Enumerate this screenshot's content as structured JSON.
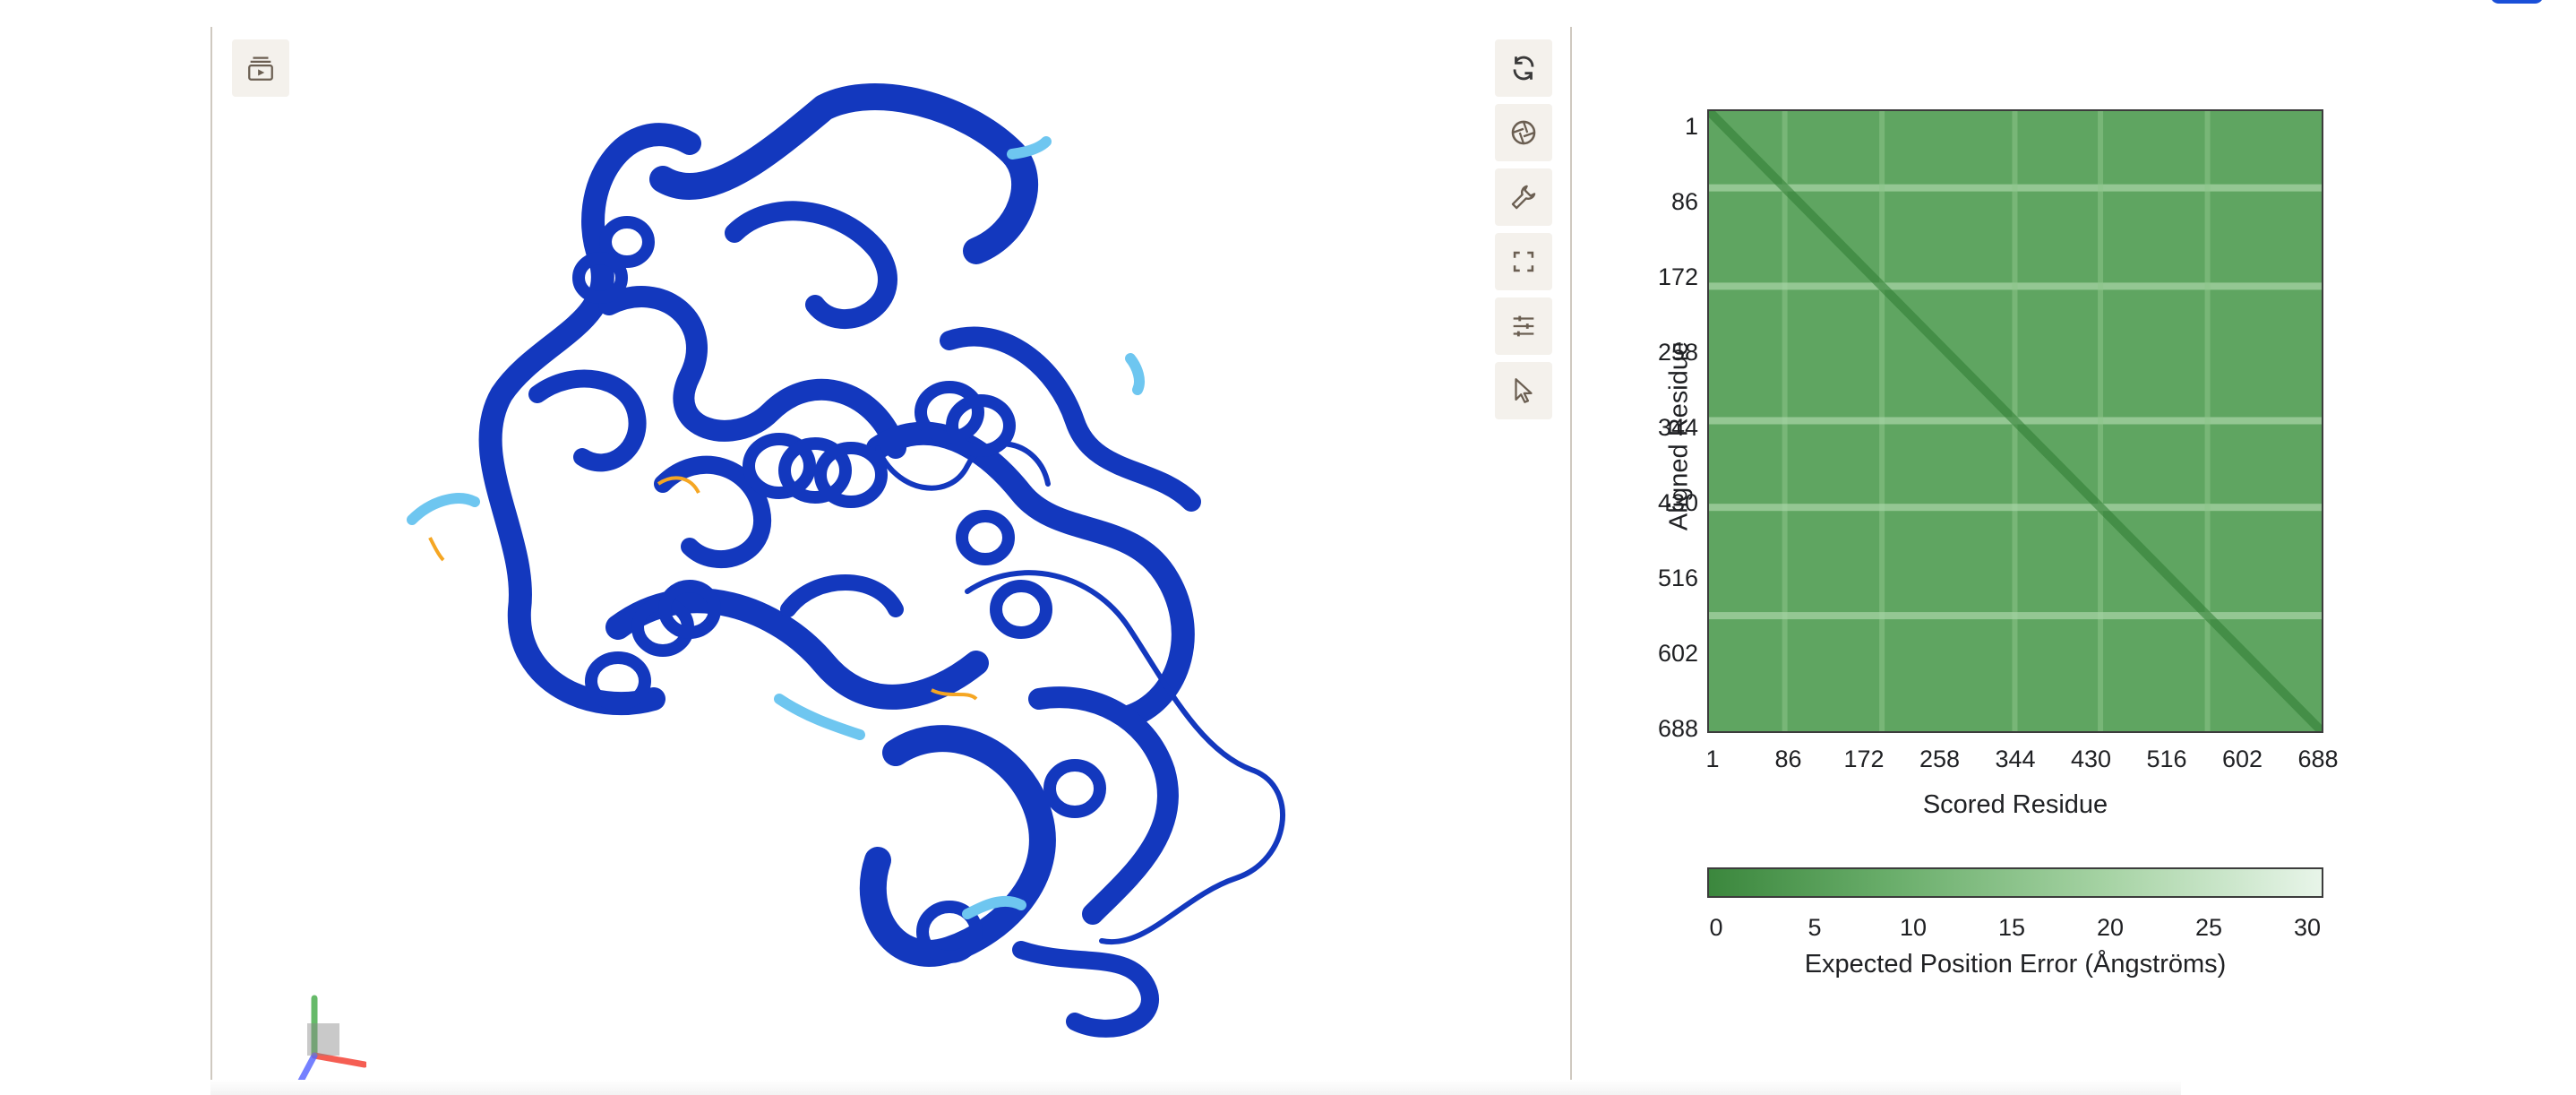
{
  "toolbar": {
    "left_button_icon": "play-stack-icon",
    "right_buttons": [
      {
        "name": "reset-view-button",
        "icon": "refresh-icon"
      },
      {
        "name": "spin-toggle-button",
        "icon": "aperture-icon"
      },
      {
        "name": "settings-button",
        "icon": "wrench-icon"
      },
      {
        "name": "fullscreen-button",
        "icon": "expand-icon"
      },
      {
        "name": "display-options-button",
        "icon": "sliders-icon"
      },
      {
        "name": "select-mode-button",
        "icon": "pointer-icon"
      }
    ]
  },
  "colors": {
    "structure_main": "#1338be",
    "structure_low": "#6ec6f0",
    "structure_very_low": "#f5a623",
    "pae_dark": "#2e7d32",
    "pae_light": "#e8f5e9",
    "border": "#cfc9c0"
  },
  "pae_plot": {
    "y_axis_label": "Aligned Residue",
    "x_axis_label": "Scored Residue",
    "y_ticks": [
      "1",
      "86",
      "172",
      "258",
      "344",
      "430",
      "516",
      "602",
      "688"
    ],
    "x_ticks": [
      "1",
      "86",
      "172",
      "258",
      "344",
      "430",
      "516",
      "602",
      "688"
    ],
    "colorbar_ticks": [
      "0",
      "5",
      "10",
      "15",
      "20",
      "25",
      "30"
    ],
    "colorbar_label": "Expected Position Error (Ångströms)"
  },
  "chart_data": {
    "type": "heatmap",
    "xlabel": "Scored Residue",
    "ylabel": "Aligned Residue",
    "x_ticks": [
      1,
      86,
      172,
      258,
      344,
      430,
      516,
      602,
      688
    ],
    "y_ticks": [
      1,
      86,
      172,
      258,
      344,
      430,
      516,
      602,
      688
    ],
    "xlim": [
      1,
      688
    ],
    "ylim": [
      1,
      688
    ],
    "color_scale": {
      "min": 0,
      "max": 30,
      "label": "Expected Position Error (Ångströms)",
      "low_color": "#2e7d32",
      "high_color": "#e8f5e9"
    },
    "description_values": {
      "diagonal_error": 0,
      "background_error": 5,
      "high_error_stripes_residues": [
        86,
        195,
        344,
        440,
        560
      ]
    }
  }
}
